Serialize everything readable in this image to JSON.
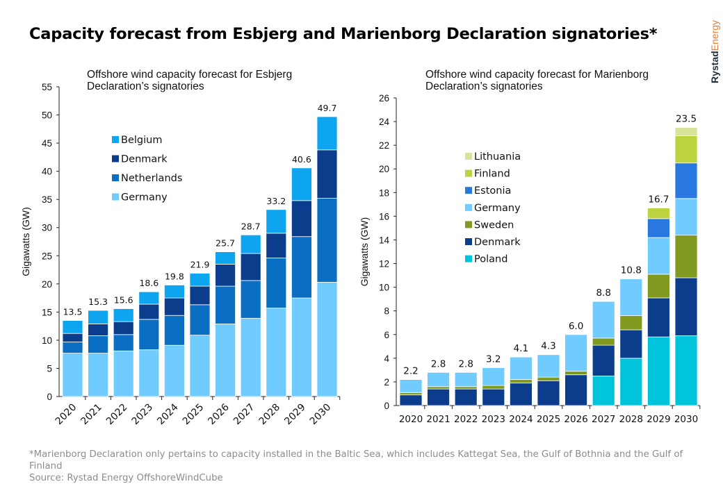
{
  "title": "Capacity forecast from Esbjerg and Marienborg Declaration signatories*",
  "brand": {
    "name_part1": "Rystad",
    "name_part2": "Energy"
  },
  "footnote": {
    "note": "*Marienborg Declaration only pertains to capacity installed in the Baltic Sea, which includes Kattegat Sea, the Gulf of Bothnia and the Gulf of Finland",
    "source": "Source: Rystad Energy OffshoreWindCube"
  },
  "chart_data": [
    {
      "type": "bar",
      "stacked": true,
      "title": "Offshore wind capacity forecast for Esbjerg Declaration's signatories",
      "ylabel": "Gigawatts (GW)",
      "ylim": [
        0,
        55
      ],
      "yticks": [
        0,
        5,
        10,
        15,
        20,
        25,
        30,
        35,
        40,
        45,
        50,
        55
      ],
      "categories": [
        "2020",
        "2021",
        "2022",
        "2023",
        "2024",
        "2025",
        "2026",
        "2027",
        "2028",
        "2029",
        "2030"
      ],
      "legend_position": "upper-left",
      "series": [
        {
          "name": "Germany",
          "color": "#70ccff",
          "values": [
            7.7,
            7.7,
            8.1,
            8.3,
            9.1,
            10.9,
            12.9,
            13.9,
            15.7,
            17.5,
            20.3
          ]
        },
        {
          "name": "Netherlands",
          "color": "#0a6fc2",
          "values": [
            2.0,
            3.1,
            2.9,
            5.4,
            5.3,
            5.4,
            6.7,
            6.7,
            8.9,
            10.9,
            14.9
          ]
        },
        {
          "name": "Denmark",
          "color": "#0b3d8c",
          "values": [
            1.5,
            2.1,
            2.3,
            2.7,
            3.1,
            3.3,
            3.9,
            4.8,
            4.4,
            6.4,
            8.6
          ]
        },
        {
          "name": "Belgium",
          "color": "#0ea5f0",
          "values": [
            2.3,
            2.4,
            2.3,
            2.2,
            2.3,
            2.3,
            2.2,
            3.3,
            4.2,
            5.8,
            5.9
          ]
        }
      ],
      "totals": [
        "13.5",
        "15.3",
        "15.6",
        "18.6",
        "19.8",
        "21.9",
        "25.7",
        "28.7",
        "33.2",
        "40.6",
        "49.7"
      ]
    },
    {
      "type": "bar",
      "stacked": true,
      "title": "Offshore wind capacity forecast for Marienborg Declaration's signatories",
      "ylabel": "Gigawatts (GW)",
      "ylim": [
        0,
        26
      ],
      "yticks": [
        0,
        2,
        4,
        6,
        8,
        10,
        12,
        14,
        16,
        18,
        20,
        22,
        24,
        26
      ],
      "categories": [
        "2020",
        "2021",
        "2022",
        "2023",
        "2024",
        "2025",
        "2026",
        "2027",
        "2028",
        "2029",
        "2030"
      ],
      "legend_position": "upper-left",
      "series": [
        {
          "name": "Poland",
          "color": "#00c4dc",
          "values": [
            0,
            0,
            0,
            0,
            0,
            0,
            0,
            2.5,
            4.0,
            5.8,
            5.9
          ]
        },
        {
          "name": "Denmark",
          "color": "#0b3d8c",
          "values": [
            0.9,
            1.4,
            1.4,
            1.4,
            1.9,
            2.1,
            2.6,
            2.6,
            2.4,
            3.3,
            4.9
          ]
        },
        {
          "name": "Sweden",
          "color": "#7f9a1e",
          "values": [
            0.2,
            0.2,
            0.2,
            0.3,
            0.3,
            0.3,
            0.3,
            0.6,
            1.2,
            2.0,
            3.6
          ]
        },
        {
          "name": "Germany",
          "color": "#70ccff",
          "values": [
            1.1,
            1.2,
            1.2,
            1.5,
            1.9,
            1.9,
            3.1,
            3.1,
            3.1,
            3.1,
            3.1
          ]
        },
        {
          "name": "Estonia",
          "color": "#2878e0",
          "values": [
            0,
            0,
            0,
            0,
            0,
            0,
            0,
            0,
            0,
            1.6,
            3.0
          ]
        },
        {
          "name": "Finland",
          "color": "#bcd23f",
          "values": [
            0,
            0,
            0,
            0,
            0,
            0,
            0,
            0,
            0,
            0.9,
            2.3
          ]
        },
        {
          "name": "Lithuania",
          "color": "#d6e59a",
          "values": [
            0,
            0,
            0,
            0,
            0,
            0,
            0,
            0,
            0,
            0,
            0.7
          ]
        }
      ],
      "totals": [
        "2.2",
        "2.8",
        "2.8",
        "3.2",
        "4.1",
        "4.3",
        "6.0",
        "8.8",
        "10.8",
        "16.7",
        "23.5"
      ]
    }
  ]
}
